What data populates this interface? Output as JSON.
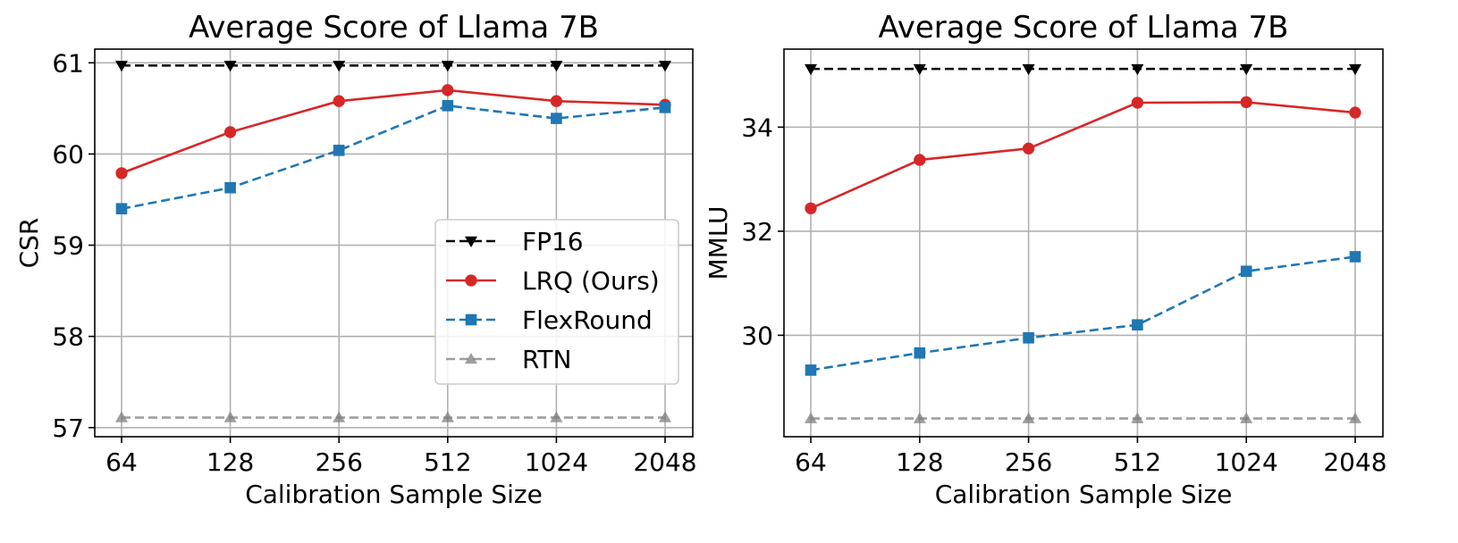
{
  "chart_data": [
    {
      "type": "line",
      "title": "Average Score of Llama 7B",
      "xlabel": "Calibration Sample Size",
      "ylabel": "CSR",
      "categories": [
        "64",
        "128",
        "256",
        "512",
        "1024",
        "2048"
      ],
      "yticks": [
        57,
        58,
        59,
        60,
        61
      ],
      "ylim": [
        56.9,
        61.15
      ],
      "grid": true,
      "legend": "center-right",
      "series": [
        {
          "name": "FP16",
          "values": [
            60.97,
            60.97,
            60.97,
            60.97,
            60.97,
            60.97
          ],
          "color": "#000000",
          "dash": "dashed",
          "marker": "triangle-down"
        },
        {
          "name": "LRQ (Ours)",
          "values": [
            59.79,
            60.24,
            60.58,
            60.7,
            60.58,
            60.54
          ],
          "color": "#d62728",
          "dash": "solid",
          "marker": "circle"
        },
        {
          "name": "FlexRound",
          "values": [
            59.4,
            59.63,
            60.04,
            60.53,
            60.39,
            60.51
          ],
          "color": "#1f77b4",
          "dash": "dashed",
          "marker": "square"
        },
        {
          "name": "RTN",
          "values": [
            57.11,
            57.11,
            57.11,
            57.11,
            57.11,
            57.11
          ],
          "color": "#7f7f7f",
          "dash": "dashed",
          "marker": "triangle-up"
        }
      ]
    },
    {
      "type": "line",
      "title": "Average Score of Llama 7B",
      "xlabel": "Calibration Sample Size",
      "ylabel": "MMLU",
      "categories": [
        "64",
        "128",
        "256",
        "512",
        "1024",
        "2048"
      ],
      "yticks": [
        30,
        32,
        34
      ],
      "ylim": [
        28.05,
        35.5
      ],
      "grid": true,
      "series": [
        {
          "name": "FP16",
          "values": [
            35.12,
            35.12,
            35.12,
            35.12,
            35.12,
            35.12
          ],
          "color": "#000000",
          "dash": "dashed",
          "marker": "triangle-down"
        },
        {
          "name": "LRQ (Ours)",
          "values": [
            32.44,
            33.37,
            33.59,
            34.47,
            34.48,
            34.28
          ],
          "color": "#d62728",
          "dash": "solid",
          "marker": "circle"
        },
        {
          "name": "FlexRound",
          "values": [
            29.33,
            29.66,
            29.95,
            30.2,
            31.23,
            31.51
          ],
          "color": "#1f77b4",
          "dash": "dashed",
          "marker": "square"
        },
        {
          "name": "RTN",
          "values": [
            28.4,
            28.4,
            28.4,
            28.4,
            28.4,
            28.4
          ],
          "color": "#7f7f7f",
          "dash": "dashed",
          "marker": "triangle-up"
        }
      ]
    }
  ]
}
